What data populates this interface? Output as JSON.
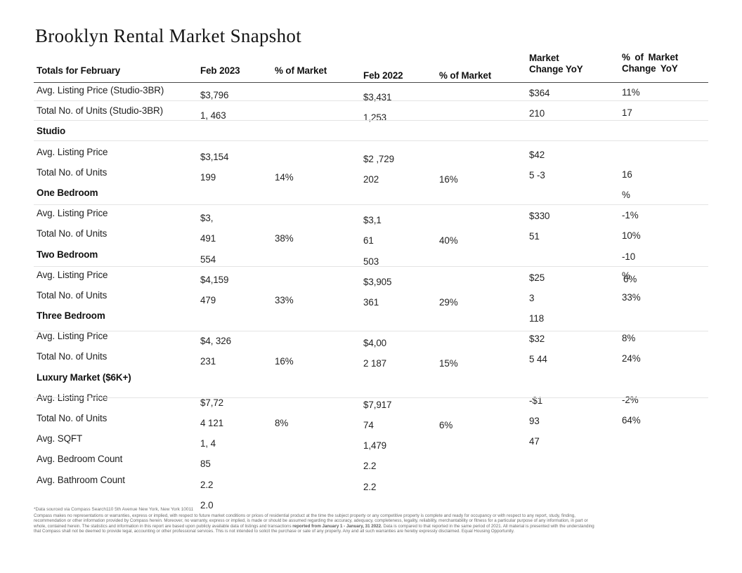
{
  "title": "Brooklyn Rental Market Snapshot",
  "table": {
    "headers": [
      {
        "lines": [
          "Totals for February"
        ]
      },
      {
        "lines": [
          "Feb 2023"
        ]
      },
      {
        "lines": [
          "% of Market"
        ]
      },
      {
        "lines": [
          "Feb 2022"
        ]
      },
      {
        "lines": [
          "% of Market"
        ]
      },
      {
        "lines": [
          "Market",
          "Change YoY"
        ]
      },
      {
        "lines": [
          "% of Market",
          "Change YoY"
        ]
      }
    ],
    "rows": [
      {
        "label": "Avg. Listing Price (Studio-3BR)",
        "cells": {
          "c2": "$3,796",
          "c4": "$3,431",
          "c6": "$364",
          "c7": "11%"
        }
      },
      {
        "label": "Total No. of Units (Studio-3BR)",
        "cells": {
          "c2": "1, 463",
          "c4": "1,253",
          "c6": "210",
          "c7": "17"
        }
      },
      {
        "label": "Studio",
        "section": true
      },
      {
        "label": "Avg. Listing Price",
        "cells": {
          "c2": "$3,154",
          "c4": "$2 ,729",
          "c6": "$42"
        }
      },
      {
        "label": "Total No. of Units",
        "cells": {
          "c2": "199",
          "c3": "14%",
          "c4": "202",
          "c5": "16%",
          "c6": "5 -3",
          "c7": "16"
        }
      },
      {
        "label": "One Bedroom",
        "section": true,
        "cells": {
          "c7": "%"
        }
      },
      {
        "label": "Avg. Listing Price",
        "cells": {
          "c2": "$3,",
          "c4": "$3,1",
          "c6": "$330",
          "c7": "-1%"
        }
      },
      {
        "label": "Total No. of Units",
        "cells": {
          "c2": "491",
          "c3": "38%",
          "c4": "61",
          "c5": "40%",
          "c6": "51",
          "c7": "10%"
        }
      },
      {
        "label": "Two Bedroom",
        "section": true,
        "cells": {
          "c2": "554",
          "c4": "503",
          "c7": "-10"
        }
      },
      {
        "label": "Avg. Listing Price",
        "cells": {
          "c2": "$4,159",
          "c4": "$3,905",
          "c6": "$25",
          "c7": [
            "%",
            "6%"
          ]
        }
      },
      {
        "label": "Total No. of Units",
        "cells": {
          "c2": "479",
          "c3": "33%",
          "c4": "361",
          "c5": "29%",
          "c6": "3",
          "c7": "33%"
        }
      },
      {
        "label": "Three Bedroom",
        "section": true,
        "cells": {
          "c6": "118"
        }
      },
      {
        "label": "Avg. Listing Price",
        "cells": {
          "c2": "$4, 326",
          "c4": "$4,00",
          "c6": "$32",
          "c7": "8%"
        }
      },
      {
        "label": "Total No. of Units",
        "cells": {
          "c2": "231",
          "c3": "16%",
          "c4": "2 187",
          "c5": "15%",
          "c6": "5 44",
          "c7": "24%"
        }
      },
      {
        "label": "Luxury Market ($6K+)",
        "section": true
      },
      {
        "label": "Avg. Listing Price",
        "cells": {
          "c2": "$7,72",
          "c4": "$7,917",
          "c6": "-$1",
          "c7": "-2%"
        }
      },
      {
        "label": "Total No. of Units",
        "cells": {
          "c2": "4 121",
          "c3": "8%",
          "c4": "74",
          "c5": "6%",
          "c6": "93",
          "c7": "64%"
        }
      },
      {
        "label": "Avg. SQFT",
        "cells": {
          "c2": "1, 4",
          "c4": "1,479",
          "c6": "47"
        }
      },
      {
        "label": "Avg. Bedroom Count",
        "cells": {
          "c2": "85",
          "c4": "2.2"
        }
      },
      {
        "label": "Avg. Bathroom Count",
        "cells": {
          "c2": "2.2",
          "c4": "2.2"
        }
      }
    ]
  },
  "stray_value": "2.0",
  "footer": {
    "footnote": "*Data sourced via Compass Search110 5th Avenue New York, New York 10011",
    "disclaimer": {
      "line1": "Compass makes no representations or warranties, express or implied, with respect to future market conditions or prices of residential product at the time the subject property or any competitive property is complete and ready for occupancy or with respect to any report, study, finding,",
      "line2": "recommendation or other information provided by Compass herein. Moreover, no warranty, express or implied, is made or should be assumed regarding the accuracy, adequacy, completeness, legality, reliability, merchantability or fitness for a particular purpose of any information, in part or",
      "line3_pre": "whole, contained herein. The statistics and information in this report are based upon publicly available data of listings and transactions ",
      "line3_bold": "reported from January 1 - January, 31 2022.",
      "line3_post": " Data is compared to that reported in the same period of 2021.  All material is presented with the understanding",
      "line4": "that Compass shall not be deemed to provide legal, accounting or other professional services. This is not intended to solicit the purchase or sale of any property. Any and all such warranties are hereby expressly disclaimed. Equal Housing Opportunity."
    }
  }
}
